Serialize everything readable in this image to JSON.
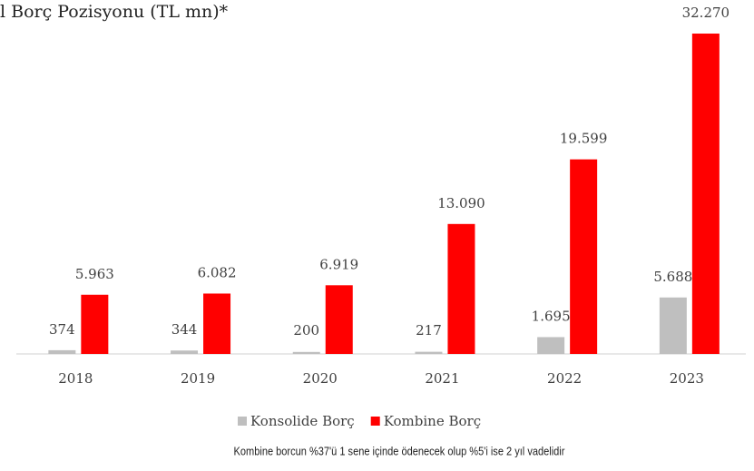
{
  "chart_data": {
    "type": "bar",
    "title": "l Borç Pozisyonu (TL mn)*",
    "categories": [
      "2018",
      "2019",
      "2020",
      "2021",
      "2022",
      "2023"
    ],
    "series": [
      {
        "name": "Konsolide Borç",
        "color": "#bfbfbf",
        "values": [
          374,
          344,
          200,
          217,
          1695,
          5688
        ],
        "value_labels": [
          "374",
          "344",
          "200",
          "217",
          "1.695",
          "5.688"
        ]
      },
      {
        "name": "Kombine Borç",
        "color": "#ff0000",
        "values": [
          5963,
          6082,
          6919,
          13090,
          19599,
          32270
        ],
        "value_labels": [
          "5.963",
          "6.082",
          "6.919",
          "13.090",
          "19.599",
          "32.270"
        ]
      }
    ],
    "legend": "bottom",
    "note": "Kombine borcun %37'ü 1 sene içinde ödenecek olup %5'i ise 2 yıl vadelidir"
  }
}
